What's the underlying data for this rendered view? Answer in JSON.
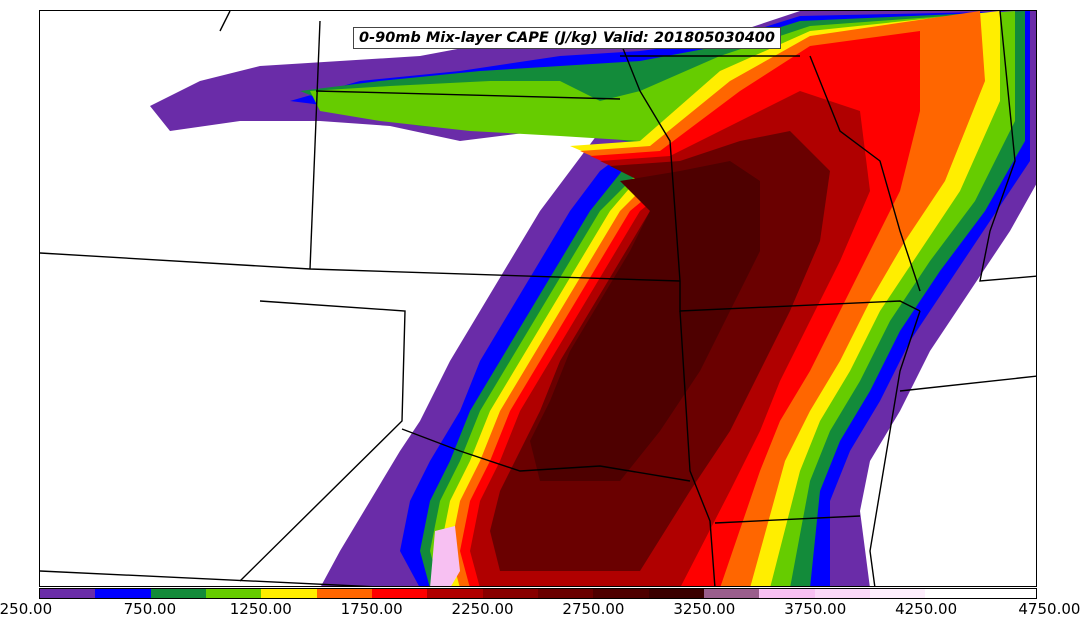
{
  "title": "0-90mb Mix-layer CAPE (J/kg) Valid: 201805030400",
  "colorbar": {
    "colors": [
      "#6a2ca8",
      "#0000ff",
      "#138b3a",
      "#66cc00",
      "#ffee00",
      "#ff6600",
      "#ff0000",
      "#b00000",
      "#880000",
      "#6a0000",
      "#4e0000",
      "#3a0000",
      "#9a5e8c",
      "#f7c0f2",
      "#fad8f7",
      "#fdeefc",
      "#ffffff",
      "#ffffff"
    ],
    "tick_labels": [
      "250.00",
      "750.00",
      "1250.00",
      "1750.00",
      "2250.00",
      "2750.00",
      "3250.00",
      "3750.00",
      "4250.00",
      "4750.00"
    ]
  }
}
